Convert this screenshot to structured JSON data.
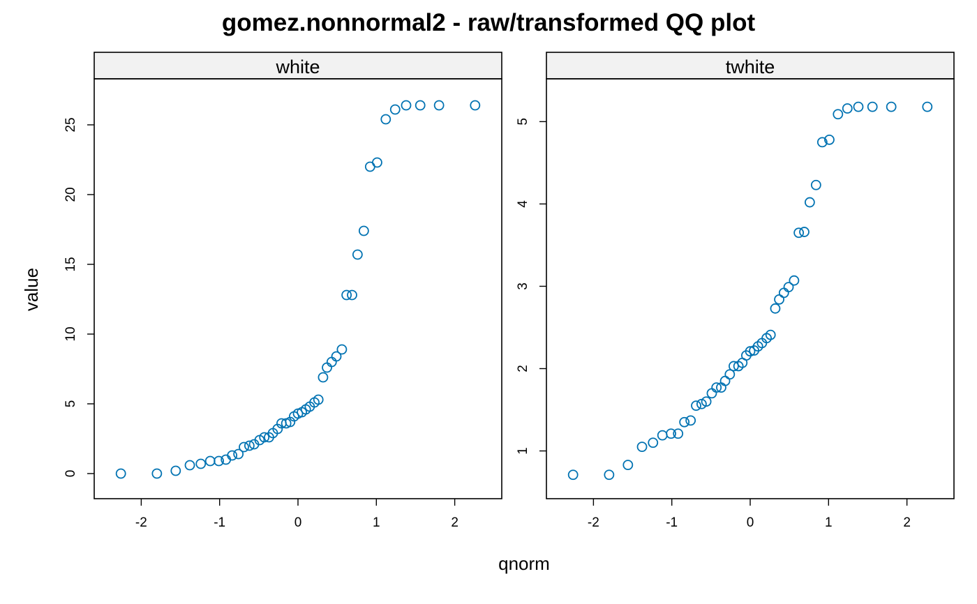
{
  "chart_data": {
    "type": "scatter",
    "title": "gomez.nonnormal2 - raw/transformed QQ plot",
    "xlabel": "qnorm",
    "ylabel": "value",
    "marker_color": "#0072b2",
    "strip_color": "#f2f2f2",
    "grid": false,
    "panels": [
      {
        "name": "white",
        "xlim": [
          -2.6,
          2.6
        ],
        "ylim": [
          -1.8,
          28.3
        ],
        "xticks": [
          -2,
          -1,
          0,
          1,
          2
        ],
        "xtick_labels": [
          "-2",
          "-1",
          "0",
          "1",
          "2"
        ],
        "yticks": [
          0,
          5,
          10,
          15,
          20,
          25
        ],
        "ytick_labels": [
          "0",
          "5",
          "10",
          "15",
          "20",
          "25"
        ],
        "x": [
          -2.26,
          -1.8,
          -1.56,
          -1.38,
          -1.24,
          -1.12,
          -1.01,
          -0.92,
          -0.84,
          -0.76,
          -0.69,
          -0.62,
          -0.56,
          -0.49,
          -0.43,
          -0.37,
          -0.32,
          -0.26,
          -0.21,
          -0.15,
          -0.1,
          -0.05,
          0.0,
          0.05,
          0.1,
          0.15,
          0.21,
          0.26,
          0.32,
          0.37,
          0.43,
          0.49,
          0.56,
          0.62,
          0.69,
          0.76,
          0.84,
          0.92,
          1.01,
          1.12,
          1.24,
          1.38,
          1.56,
          1.8,
          2.26
        ],
        "y": [
          0.0,
          0.0,
          0.2,
          0.6,
          0.7,
          0.9,
          0.9,
          1.0,
          1.3,
          1.4,
          1.9,
          2.0,
          2.1,
          2.4,
          2.6,
          2.6,
          2.9,
          3.2,
          3.6,
          3.6,
          3.7,
          4.1,
          4.3,
          4.4,
          4.6,
          4.8,
          5.1,
          5.3,
          6.9,
          7.6,
          8.0,
          8.4,
          8.9,
          12.8,
          12.8,
          15.7,
          17.4,
          22.0,
          22.3,
          25.4,
          26.1,
          26.4,
          26.4,
          26.4,
          26.4
        ]
      },
      {
        "name": "twhite",
        "xlim": [
          -2.6,
          2.6
        ],
        "ylim": [
          0.42,
          5.52
        ],
        "xticks": [
          -2,
          -1,
          0,
          1,
          2
        ],
        "xtick_labels": [
          "-2",
          "-1",
          "0",
          "1",
          "2"
        ],
        "yticks": [
          1,
          2,
          3,
          4,
          5
        ],
        "ytick_labels": [
          "1",
          "2",
          "3",
          "4",
          "5"
        ],
        "x": [
          -2.26,
          -1.8,
          -1.56,
          -1.38,
          -1.24,
          -1.12,
          -1.01,
          -0.92,
          -0.84,
          -0.76,
          -0.69,
          -0.62,
          -0.56,
          -0.49,
          -0.43,
          -0.37,
          -0.32,
          -0.26,
          -0.21,
          -0.15,
          -0.1,
          -0.05,
          0.0,
          0.05,
          0.1,
          0.15,
          0.21,
          0.26,
          0.32,
          0.37,
          0.43,
          0.49,
          0.56,
          0.62,
          0.69,
          0.76,
          0.84,
          0.92,
          1.01,
          1.12,
          1.24,
          1.38,
          1.56,
          1.8,
          2.26
        ],
        "y": [
          0.71,
          0.71,
          0.83,
          1.05,
          1.1,
          1.19,
          1.21,
          1.21,
          1.35,
          1.37,
          1.55,
          1.57,
          1.6,
          1.7,
          1.77,
          1.77,
          1.85,
          1.93,
          2.03,
          2.03,
          2.07,
          2.16,
          2.21,
          2.22,
          2.27,
          2.31,
          2.37,
          2.41,
          2.73,
          2.84,
          2.92,
          2.99,
          3.07,
          3.65,
          3.66,
          4.02,
          4.23,
          4.75,
          4.78,
          5.09,
          5.16,
          5.18,
          5.18,
          5.18,
          5.18
        ]
      }
    ]
  }
}
